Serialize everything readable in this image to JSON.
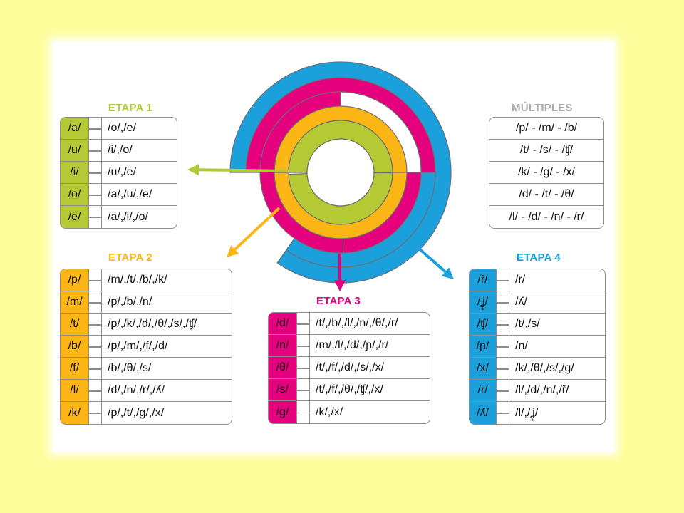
{
  "colors": {
    "etapa1": "#b5c935",
    "etapa2": "#fbb515",
    "etapa3": "#e5007e",
    "etapa4": "#1ba0dc",
    "multiples": "#a7a9ac",
    "background": "#fefe9c"
  },
  "etapa1": {
    "title": "ETAPA 1",
    "rows": [
      {
        "phoneme": "/a/",
        "contrasts": "/o/,/e/"
      },
      {
        "phoneme": "/u/",
        "contrasts": "/i/,/o/"
      },
      {
        "phoneme": "/i/",
        "contrasts": "/u/,/e/"
      },
      {
        "phoneme": "/o/",
        "contrasts": "/a/,/u/,/e/"
      },
      {
        "phoneme": "/e/",
        "contrasts": "/a/,/i/,/o/"
      }
    ]
  },
  "multiples": {
    "title": "MÚLTIPLES",
    "rows": [
      "/p/ - /m/ - /b/",
      "/t/ - /s/ - /ʧ/",
      "/k/ - /g/ - /x/",
      "/d/ - /t/ - /θ/",
      "/l/ - /d/ - /n/ - /r/"
    ]
  },
  "etapa2": {
    "title": "ETAPA 2",
    "rows": [
      {
        "phoneme": "/p/",
        "contrasts": "/m/,/t/,/b/,/k/"
      },
      {
        "phoneme": "/m/",
        "contrasts": "/p/,/b/,/n/"
      },
      {
        "phoneme": "/t/",
        "contrasts": "/p/,/k/,/d/,/θ/,/s/,/ʧ/"
      },
      {
        "phoneme": "/b/",
        "contrasts": "/p/,/m/,/f/,/d/"
      },
      {
        "phoneme": "/f/",
        "contrasts": "/b/,/θ/,/s/"
      },
      {
        "phoneme": "/l/",
        "contrasts": "/d/,/n/,/r/,/ʎ/"
      },
      {
        "phoneme": "/k/",
        "contrasts": "/p/,/t/,/g/,/x/"
      }
    ]
  },
  "etapa3": {
    "title": "ETAPA 3",
    "rows": [
      {
        "phoneme": "/d/",
        "contrasts": "/t/,/b/,/l/,/n/,/θ/,/r/"
      },
      {
        "phoneme": "/n/",
        "contrasts": "/m/,/l/,/d/,/ɲ/,/r/"
      },
      {
        "phoneme": "/θ/",
        "contrasts": "/t/,/f/,/d/,/s/,/x/"
      },
      {
        "phoneme": "/s/",
        "contrasts": "/t/,/f/,/θ/,/ʧ/,/x/"
      },
      {
        "phoneme": "/g/",
        "contrasts": "/k/,/x/"
      }
    ]
  },
  "etapa4": {
    "title": "ETAPA 4",
    "rows": [
      {
        "phoneme": "/ř/",
        "contrasts": "/r/"
      },
      {
        "phoneme": "/ʝ̥/",
        "contrasts": "/ʎ/"
      },
      {
        "phoneme": "/ʧ/",
        "contrasts": "/t/,/s/"
      },
      {
        "phoneme": "/ɲ/",
        "contrasts": "/n/"
      },
      {
        "phoneme": "/x/",
        "contrasts": "/k/,/θ/,/s/,/g/"
      },
      {
        "phoneme": "/r/",
        "contrasts": "/l/,/d/,/n/,/ř/"
      },
      {
        "phoneme": "/ʎ/",
        "contrasts": "/l/,/ʝ̥/"
      }
    ]
  }
}
